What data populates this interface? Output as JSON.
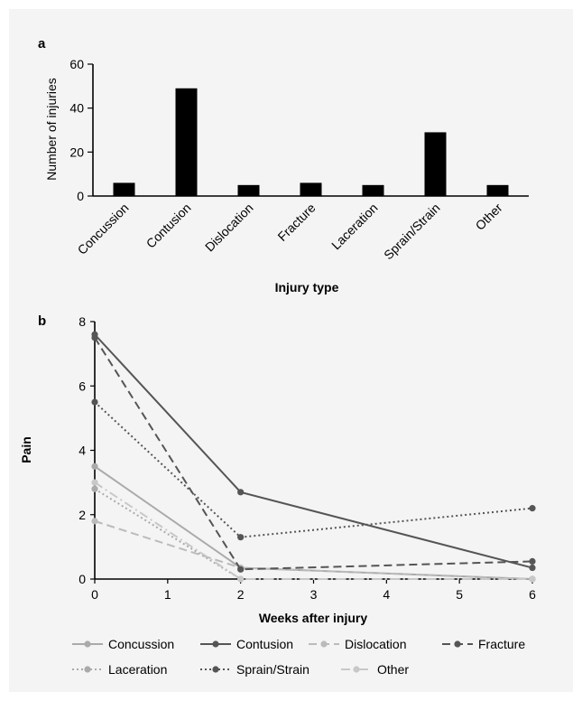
{
  "chart_data": [
    {
      "panel": "a",
      "type": "bar",
      "categories": [
        "Concussion",
        "Contusion",
        "Dislocation",
        "Fracture",
        "Laceration",
        "Sprain/Strain",
        "Other"
      ],
      "values": [
        6,
        49,
        5,
        6,
        5,
        29,
        5
      ],
      "xlabel": "Injury type",
      "ylabel": "Number of injuries",
      "ylim": [
        0,
        60
      ],
      "yticks": [
        0,
        20,
        40,
        60
      ],
      "bar_color": "#000000",
      "grid": false
    },
    {
      "panel": "b",
      "type": "line",
      "x": [
        0,
        2,
        6
      ],
      "xlabel": "Weeks after injury",
      "ylabel": "Pain",
      "xlim": [
        0,
        6
      ],
      "ylim": [
        0,
        8
      ],
      "xticks": [
        0,
        1,
        2,
        3,
        4,
        5,
        6
      ],
      "yticks": [
        0,
        2,
        4,
        6,
        8
      ],
      "grid": false,
      "legend_placement": "bottom",
      "series": [
        {
          "name": "Concussion",
          "values": [
            3.5,
            0.35,
            0
          ],
          "color": "#aaaaaa",
          "style": "solid"
        },
        {
          "name": "Contusion",
          "values": [
            7.6,
            2.7,
            0.35
          ],
          "color": "#555555",
          "style": "solid"
        },
        {
          "name": "Dislocation",
          "values": [
            1.8,
            0.35,
            0
          ],
          "color": "#bbbbbb",
          "style": "dashed"
        },
        {
          "name": "Fracture",
          "values": [
            7.5,
            0.3,
            0.55
          ],
          "color": "#555555",
          "style": "dashed"
        },
        {
          "name": "Laceration",
          "values": [
            2.8,
            0,
            0
          ],
          "color": "#aaaaaa",
          "style": "dotted"
        },
        {
          "name": "Sprain/Strain",
          "values": [
            5.5,
            1.3,
            2.2
          ],
          "color": "#555555",
          "style": "dotted"
        },
        {
          "name": "Other",
          "values": [
            3.0,
            0,
            0
          ],
          "color": "#c8c8c8",
          "style": "dashdot"
        }
      ]
    }
  ]
}
